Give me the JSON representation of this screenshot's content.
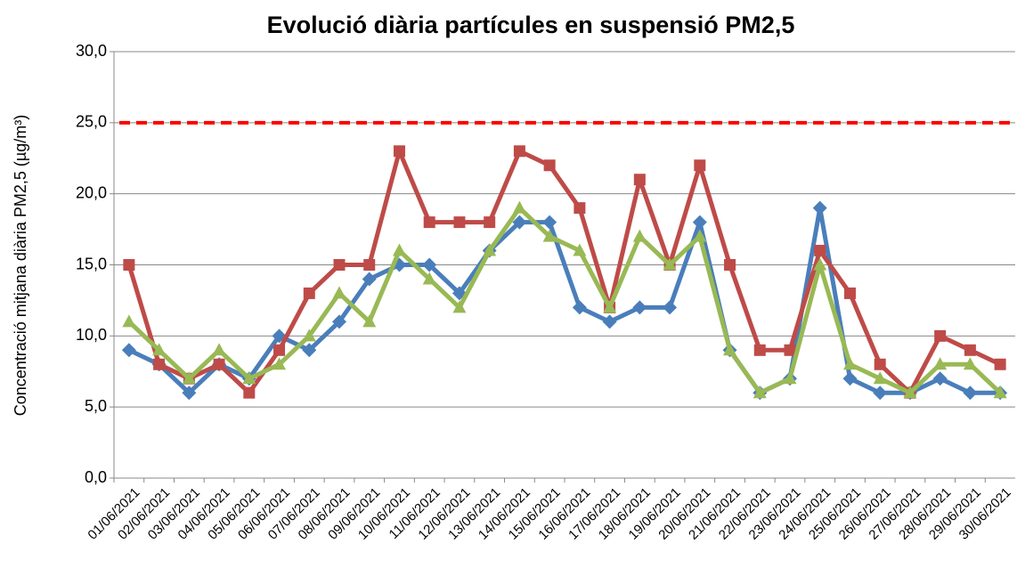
{
  "chart_data": {
    "type": "line",
    "title": "Evolució diària partícules en suspensió  PM2,5",
    "y_label": "Concentració mitjana diària PM2,5 (µg/m³)",
    "categories": [
      "01/06/2021",
      "02/06/2021",
      "03/06/2021",
      "04/06/2021",
      "05/06/2021",
      "06/06/2021",
      "07/06/2021",
      "08/06/2021",
      "09/06/2021",
      "10/06/2021",
      "11/06/2021",
      "12/06/2021",
      "13/06/2021",
      "14/06/2021",
      "15/06/2021",
      "16/06/2021",
      "17/06/2021",
      "18/06/2021",
      "19/06/2021",
      "20/06/2021",
      "21/06/2021",
      "22/06/2021",
      "23/06/2021",
      "24/06/2021",
      "25/06/2021",
      "26/06/2021",
      "27/06/2021",
      "28/06/2021",
      "29/06/2021",
      "30/06/2021"
    ],
    "series": [
      {
        "color": "#4a7ebb",
        "marker": "diamond",
        "values": [
          9,
          8,
          6,
          8,
          7,
          10,
          9,
          11,
          14,
          15,
          15,
          13,
          16,
          18,
          18,
          12,
          11,
          12,
          12,
          18,
          9,
          6,
          7,
          19,
          7,
          6,
          6,
          7,
          6,
          6
        ]
      },
      {
        "color": "#be4b48",
        "marker": "square",
        "values": [
          15,
          8,
          7,
          8,
          6,
          9,
          13,
          15,
          15,
          23,
          18,
          18,
          18,
          23,
          22,
          19,
          12,
          21,
          15,
          22,
          15,
          9,
          9,
          16,
          13,
          8,
          6,
          10,
          9,
          8
        ]
      },
      {
        "color": "#98b954",
        "marker": "triangle",
        "values": [
          11,
          9,
          7,
          9,
          7,
          8,
          10,
          13,
          11,
          16,
          14,
          12,
          16,
          19,
          17,
          16,
          12,
          17,
          15,
          17,
          9,
          6,
          7,
          15,
          8,
          7,
          6,
          8,
          8,
          6
        ]
      }
    ],
    "reference_line": {
      "value": 25,
      "color": "#ff0000"
    },
    "ylim": [
      0,
      30
    ],
    "yticks": [
      {
        "value": 0,
        "label": "0,0"
      },
      {
        "value": 5,
        "label": "5,0"
      },
      {
        "value": 10,
        "label": "10,0"
      },
      {
        "value": 15,
        "label": "15,0"
      },
      {
        "value": 20,
        "label": "20,0"
      },
      {
        "value": 25,
        "label": "25,0"
      },
      {
        "value": 30,
        "label": "30,0"
      }
    ],
    "grid": true
  }
}
